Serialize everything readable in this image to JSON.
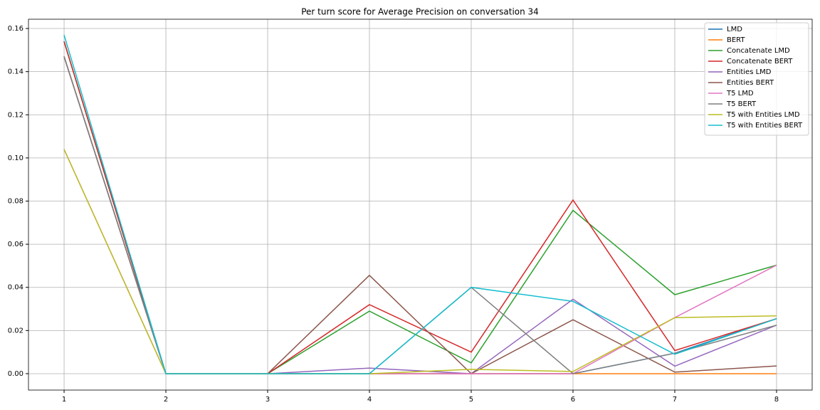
{
  "chart_data": {
    "type": "line",
    "title": "Per turn score for Average Precision on conversation 34",
    "x": [
      1,
      2,
      3,
      4,
      5,
      6,
      7,
      8
    ],
    "series": [
      {
        "name": "LMD",
        "color": "#1f77b4",
        "values": [
          0.154,
          0,
          0,
          0,
          0,
          0,
          0.0095,
          0.0255
        ]
      },
      {
        "name": "BERT",
        "color": "#ff7f0e",
        "values": [
          0.147,
          0,
          0,
          0,
          0,
          0,
          0,
          0
        ]
      },
      {
        "name": "Concatenate LMD",
        "color": "#2ca02c",
        "values": [
          0.154,
          0,
          0,
          0.029,
          0.005,
          0.0757,
          0.0366,
          0.0503
        ]
      },
      {
        "name": "Concatenate BERT",
        "color": "#d62728",
        "values": [
          0.154,
          0,
          0,
          0.032,
          0.01,
          0.0805,
          0.0107,
          0.0255
        ]
      },
      {
        "name": "Entities LMD",
        "color": "#9467bd",
        "values": [
          0.147,
          0,
          0,
          0.0026,
          0,
          0.0345,
          0.0035,
          0.0225
        ]
      },
      {
        "name": "Entities BERT",
        "color": "#8c564b",
        "values": [
          0.147,
          0,
          0,
          0.0456,
          0,
          0.025,
          0.0007,
          0.0036
        ]
      },
      {
        "name": "T5 LMD",
        "color": "#e377c2",
        "values": [
          0.104,
          0,
          0,
          0,
          0,
          0,
          0.026,
          0.0503
        ]
      },
      {
        "name": "T5 BERT",
        "color": "#7f7f7f",
        "values": [
          0.147,
          0,
          0,
          0,
          0.04,
          0,
          0.0095,
          0.0225
        ]
      },
      {
        "name": "T5 with Entities LMD",
        "color": "#bcbd22",
        "values": [
          0.104,
          0,
          0,
          0,
          0.002,
          0.001,
          0.026,
          0.0268
        ]
      },
      {
        "name": "T5 with Entities BERT",
        "color": "#17becf",
        "values": [
          0.157,
          0,
          0,
          0,
          0.04,
          0.0335,
          0.009,
          0.0255
        ]
      }
    ],
    "xlim": [
      0.65,
      8.35
    ],
    "xticks": [
      1,
      2,
      3,
      4,
      5,
      6,
      7,
      8
    ],
    "ylim": [
      -0.0076,
      0.1643
    ],
    "yticks": [
      {
        "value": 0,
        "label": "0.00"
      },
      {
        "value": 0.02,
        "label": "0.02"
      },
      {
        "value": 0.04,
        "label": "0.04"
      },
      {
        "value": 0.06,
        "label": "0.06"
      },
      {
        "value": 0.08,
        "label": "0.08"
      },
      {
        "value": 0.1,
        "label": "0.10"
      },
      {
        "value": 0.12,
        "label": "0.12"
      },
      {
        "value": 0.14,
        "label": "0.14"
      },
      {
        "value": 0.16,
        "label": "0.16"
      }
    ],
    "grid": true,
    "legend": "upper right"
  }
}
